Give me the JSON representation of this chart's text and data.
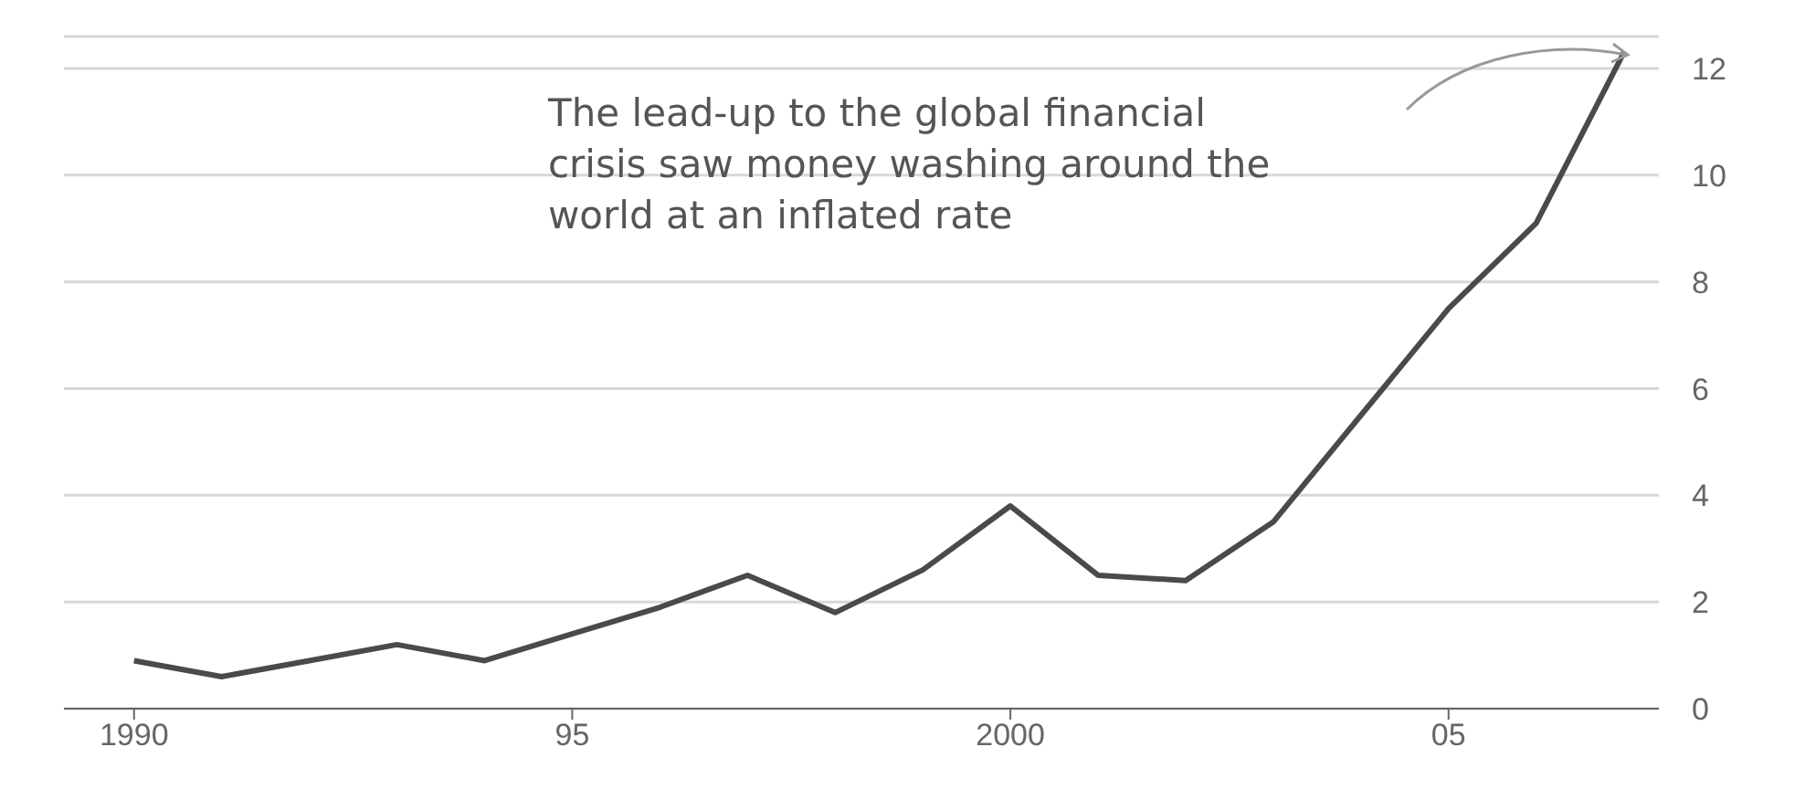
{
  "chart_data": {
    "type": "line",
    "x": [
      1990,
      1991,
      1992,
      1993,
      1994,
      1995,
      1996,
      1997,
      1998,
      1999,
      2000,
      2001,
      2002,
      2003,
      2004,
      2005,
      2006,
      2007
    ],
    "series": [
      {
        "color": "#4a4a4a",
        "values": [
          0.9,
          0.6,
          0.9,
          1.2,
          0.9,
          1.4,
          1.9,
          2.5,
          1.8,
          2.6,
          3.8,
          2.5,
          2.4,
          3.5,
          5.5,
          7.5,
          9.1,
          12.3
        ]
      }
    ],
    "xlim": [
      1989.2,
      2007.4
    ],
    "xticks": [
      1990,
      {
        "value": 1995,
        "label": "95"
      },
      2000,
      {
        "value": 2005,
        "label": "05"
      }
    ],
    "ylim": [
      0,
      12.6
    ],
    "yticks": [
      0,
      2,
      4,
      6,
      8,
      10,
      12
    ],
    "grid": "y",
    "marker": "none",
    "line_style": "solid",
    "legend": false,
    "annotations": [
      "The lead-up to the global financial crisis saw money washing around the world at an inflated rate"
    ]
  }
}
